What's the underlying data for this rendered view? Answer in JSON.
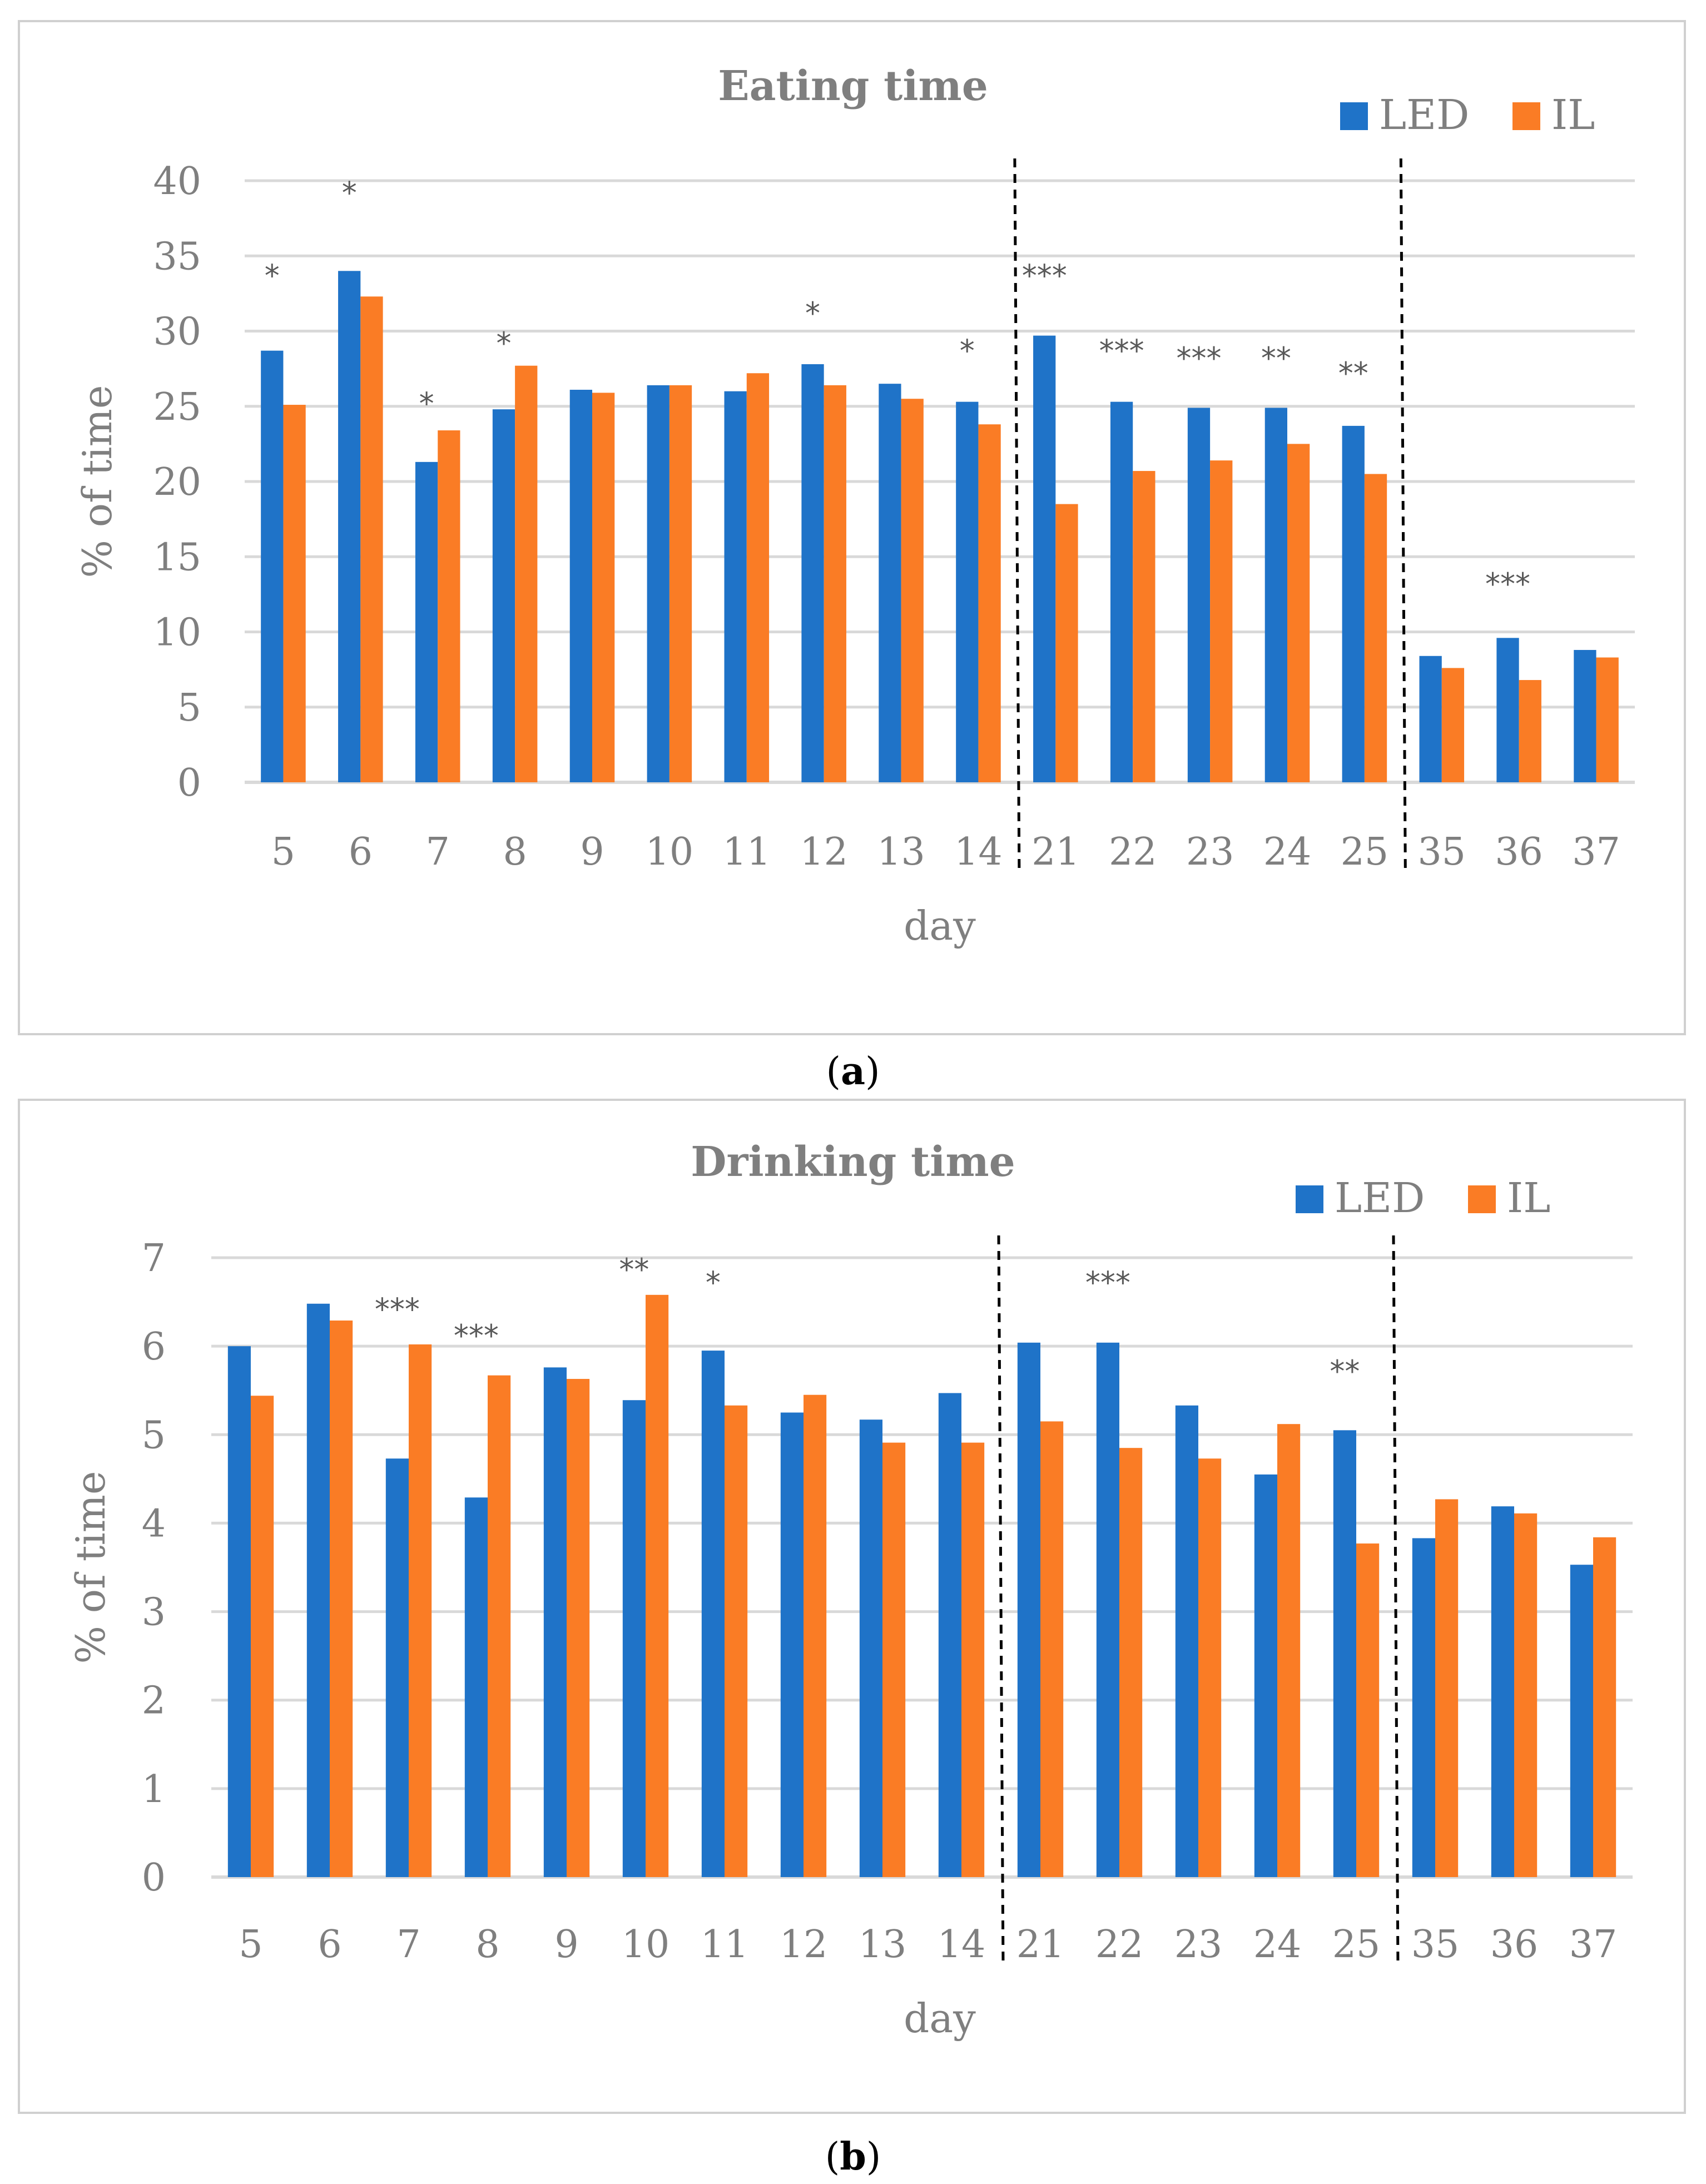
{
  "chart_data": [
    {
      "type": "bar",
      "title": "Eating time",
      "xlabel": "day",
      "ylabel": "% of time",
      "ylim": [
        0,
        40
      ],
      "yticks": [
        0,
        5,
        10,
        15,
        20,
        25,
        30,
        35,
        40
      ],
      "categories": [
        "5",
        "6",
        "7",
        "8",
        "9",
        "10",
        "11",
        "12",
        "13",
        "14",
        "21",
        "22",
        "23",
        "24",
        "25",
        "35",
        "36",
        "37"
      ],
      "series": [
        {
          "name": "LED",
          "color": "#1f73c8",
          "values": [
            28.7,
            34.0,
            21.3,
            24.8,
            26.1,
            26.4,
            26.0,
            27.8,
            26.5,
            25.3,
            29.7,
            25.3,
            24.9,
            24.9,
            23.7,
            8.4,
            9.6,
            8.8
          ]
        },
        {
          "name": "IL",
          "color": "#fa7c25",
          "values": [
            25.1,
            32.3,
            23.4,
            27.7,
            25.9,
            26.4,
            27.2,
            26.4,
            25.5,
            23.8,
            18.5,
            20.7,
            21.4,
            22.5,
            20.5,
            7.6,
            6.8,
            8.3
          ]
        }
      ],
      "significance": [
        "*",
        "*",
        "*",
        "*",
        "",
        "",
        "",
        "*",
        "",
        "*",
        "***",
        "***",
        "***",
        "**",
        "**",
        "",
        "***",
        ""
      ],
      "significance_y": [
        33,
        38.5,
        24.5,
        28.5,
        null,
        null,
        null,
        30.5,
        null,
        28,
        33,
        28,
        27.5,
        27.5,
        26.5,
        null,
        12.5,
        null
      ],
      "phase_dividers_after": [
        9,
        14
      ],
      "legend_position": "top-right",
      "caption": "a"
    },
    {
      "type": "bar",
      "title": "Drinking time",
      "xlabel": "day",
      "ylabel": "% of time",
      "ylim": [
        0,
        7
      ],
      "yticks": [
        0,
        1,
        2,
        3,
        4,
        5,
        6,
        7
      ],
      "categories": [
        "5",
        "6",
        "7",
        "8",
        "9",
        "10",
        "11",
        "12",
        "13",
        "14",
        "21",
        "22",
        "23",
        "24",
        "25",
        "35",
        "36",
        "37"
      ],
      "series": [
        {
          "name": "LED",
          "color": "#1f73c8",
          "values": [
            6.0,
            6.48,
            4.73,
            4.29,
            5.76,
            5.39,
            5.95,
            5.25,
            5.17,
            5.47,
            6.04,
            6.04,
            5.33,
            4.55,
            5.05,
            3.83,
            4.19,
            3.53
          ]
        },
        {
          "name": "IL",
          "color": "#fa7c25",
          "values": [
            5.44,
            6.29,
            6.02,
            5.67,
            5.63,
            6.58,
            5.33,
            5.45,
            4.91,
            4.91,
            5.15,
            4.85,
            4.73,
            5.12,
            3.77,
            4.27,
            4.11,
            3.84
          ]
        }
      ],
      "significance": [
        "",
        "",
        "***",
        "***",
        "",
        "**",
        "*",
        "",
        "",
        "",
        "",
        "***",
        "",
        "",
        "**",
        "",
        "",
        ""
      ],
      "significance_y": [
        null,
        null,
        6.3,
        6.0,
        null,
        6.75,
        6.6,
        null,
        null,
        null,
        null,
        6.6,
        null,
        null,
        5.6,
        null,
        null,
        null
      ],
      "phase_dividers_after": [
        9,
        14
      ],
      "legend_position": "top-right",
      "caption": "b"
    }
  ]
}
